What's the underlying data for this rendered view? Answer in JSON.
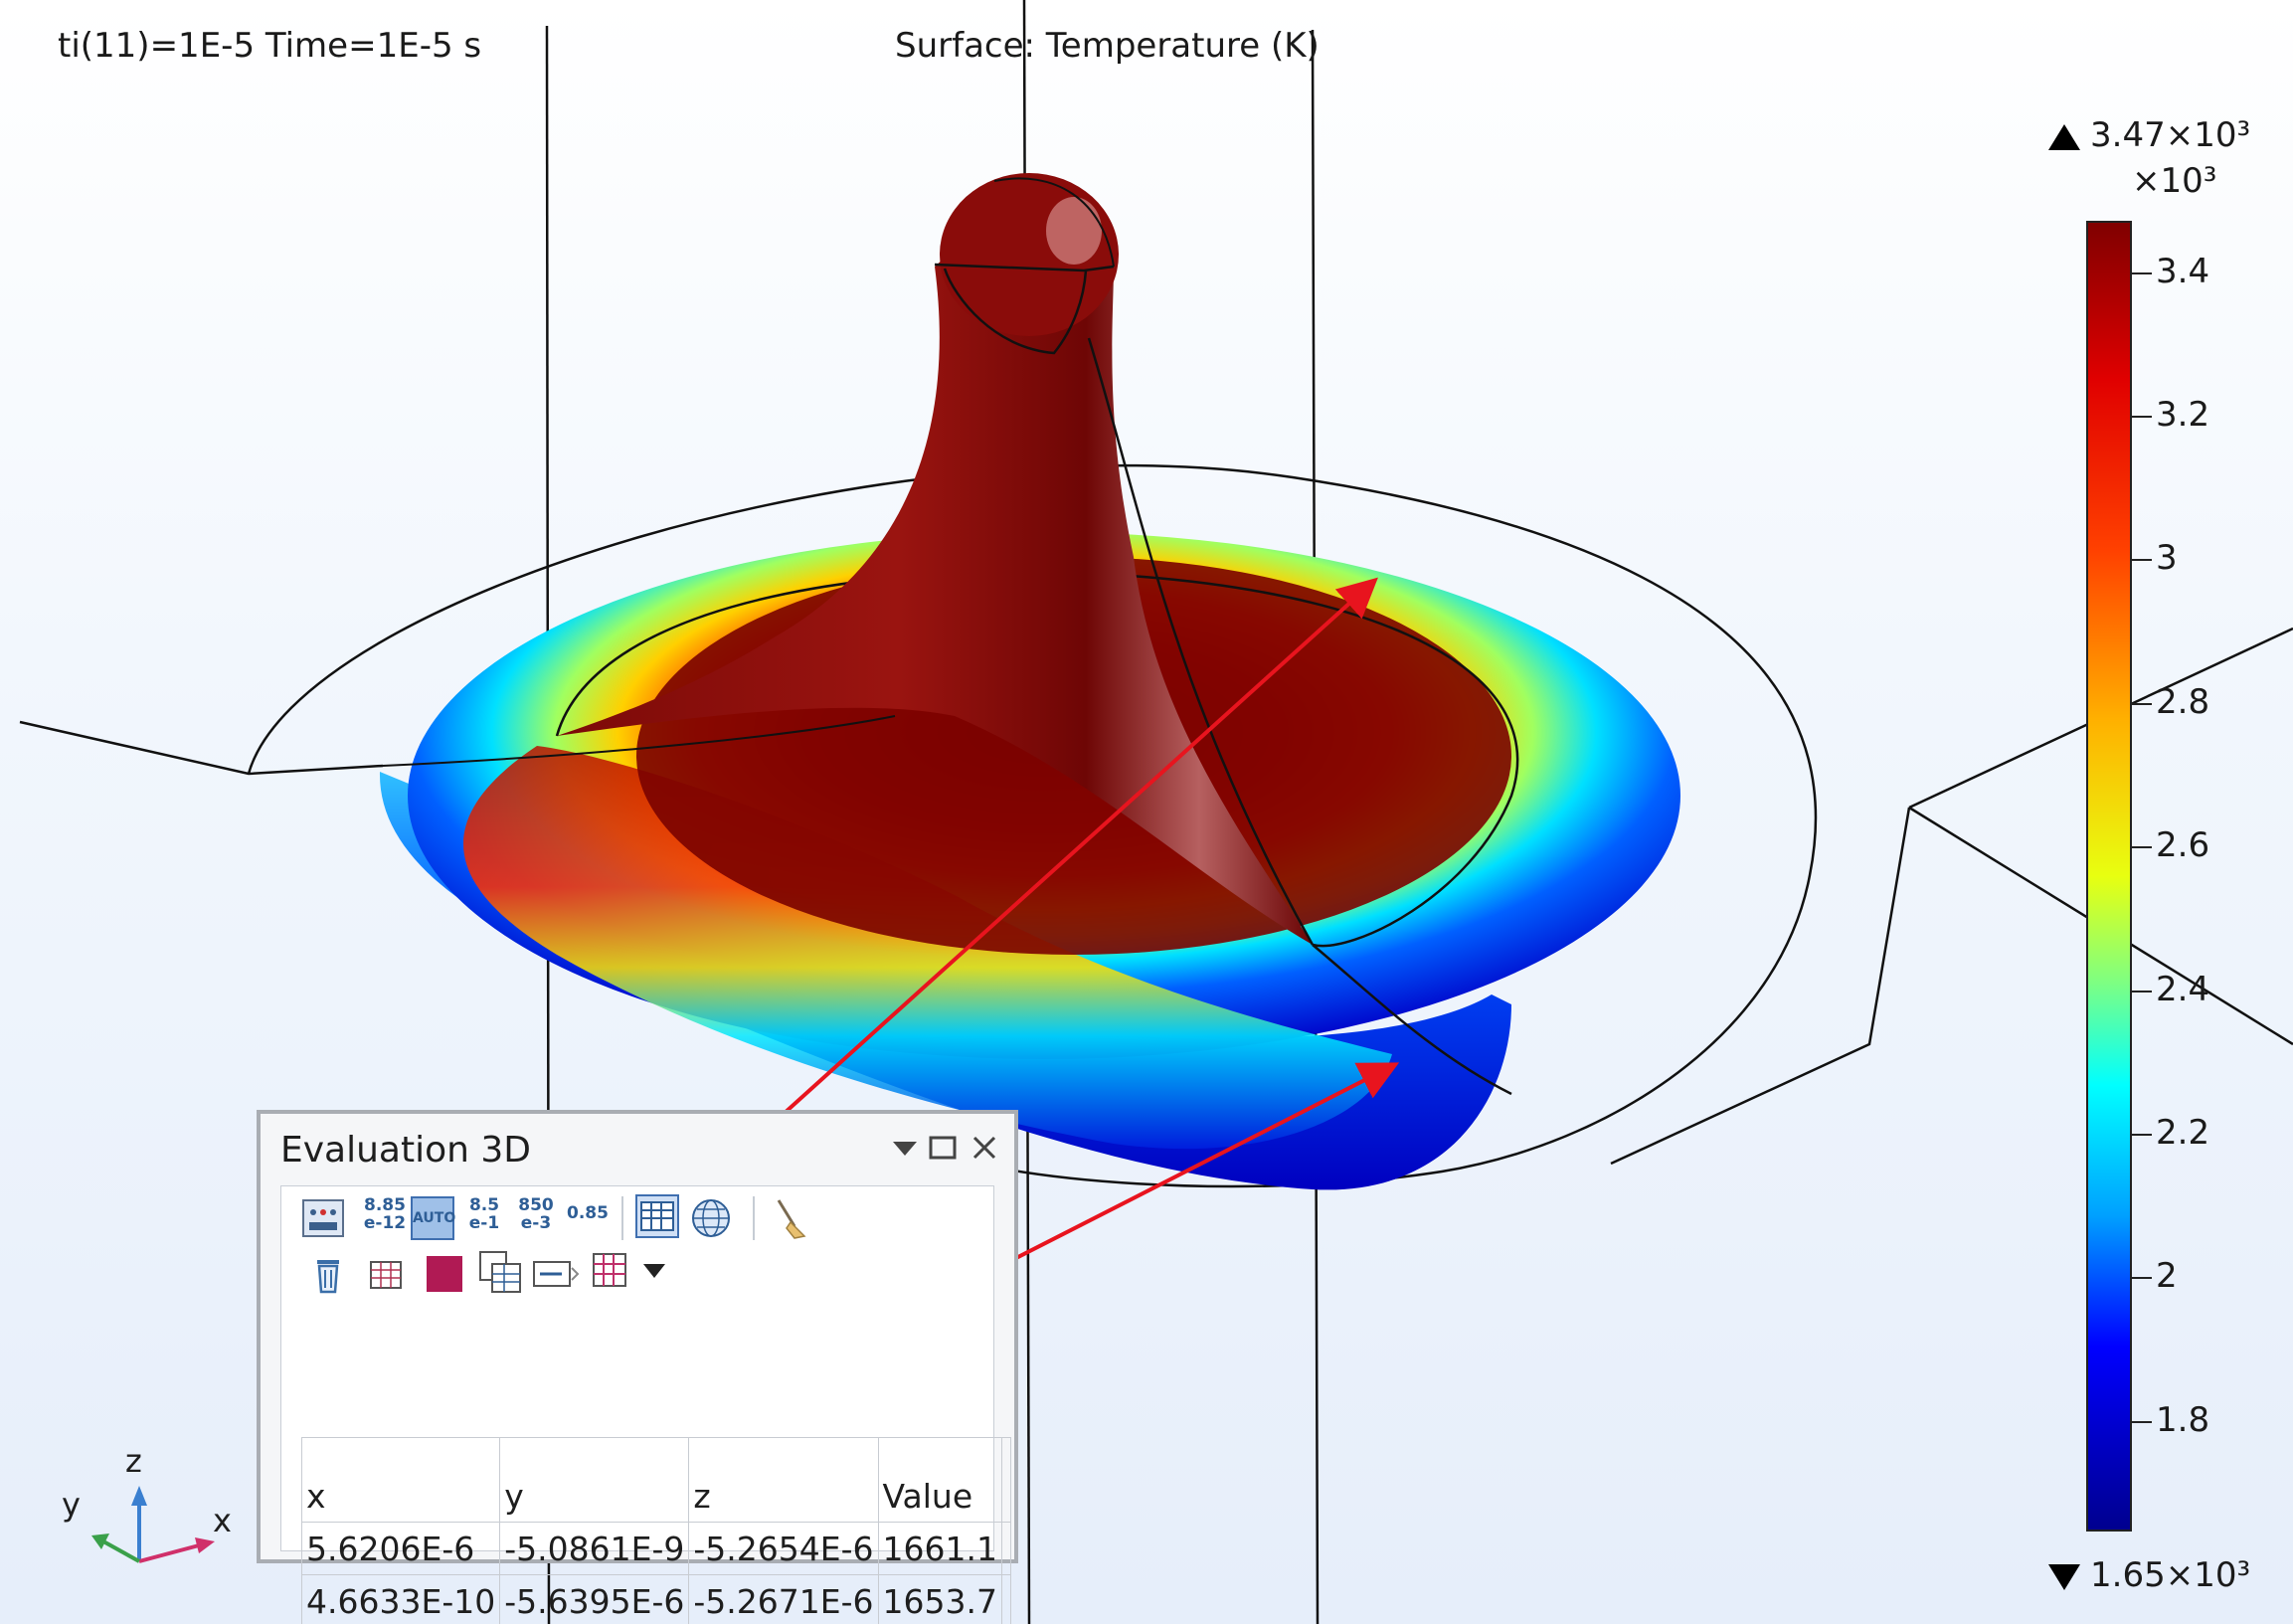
{
  "viewport": {
    "time_label": "ti(11)=1E-5 Time=1E-5 s",
    "surface_title": "Surface: Temperature (K)"
  },
  "color_legend": {
    "max_label": "3.47×10³",
    "min_label": "1.65×10³",
    "exponent_label": "×10³",
    "ticks": [
      "3.4",
      "3.2",
      "3",
      "2.8",
      "2.6",
      "2.4",
      "2.2",
      "2",
      "1.8"
    ],
    "colormap": [
      "#00008f",
      "#0000ff",
      "#00a0ff",
      "#00ffff",
      "#80ff80",
      "#ffff00",
      "#ff8000",
      "#ff0000",
      "#800000"
    ]
  },
  "eval_panel": {
    "title": "Evaluation 3D",
    "toolbar_row1": [
      {
        "name": "format-button-1",
        "label": "8.85\ne-12"
      },
      {
        "name": "format-auto-button",
        "label": "AUTO"
      },
      {
        "name": "format-button-2",
        "label": "8.5\ne-1"
      },
      {
        "name": "format-button-3",
        "label": "850\ne-3"
      },
      {
        "name": "format-button-4",
        "label": "0.85"
      }
    ],
    "columns": [
      "x",
      "y",
      "z",
      "Value"
    ],
    "rows": [
      [
        "5.6206E-6",
        "-5.0861E-9",
        "-5.2654E-6",
        "1661.1"
      ],
      [
        "4.6633E-10",
        "-5.6395E-6",
        "-5.2671E-6",
        "1653.7"
      ]
    ]
  },
  "axis_triad": {
    "x": "x",
    "y": "y",
    "z": "z"
  },
  "colors": {
    "annotation_red": "#e8141e",
    "hot": "#7a0000",
    "cold": "#0000d8"
  }
}
